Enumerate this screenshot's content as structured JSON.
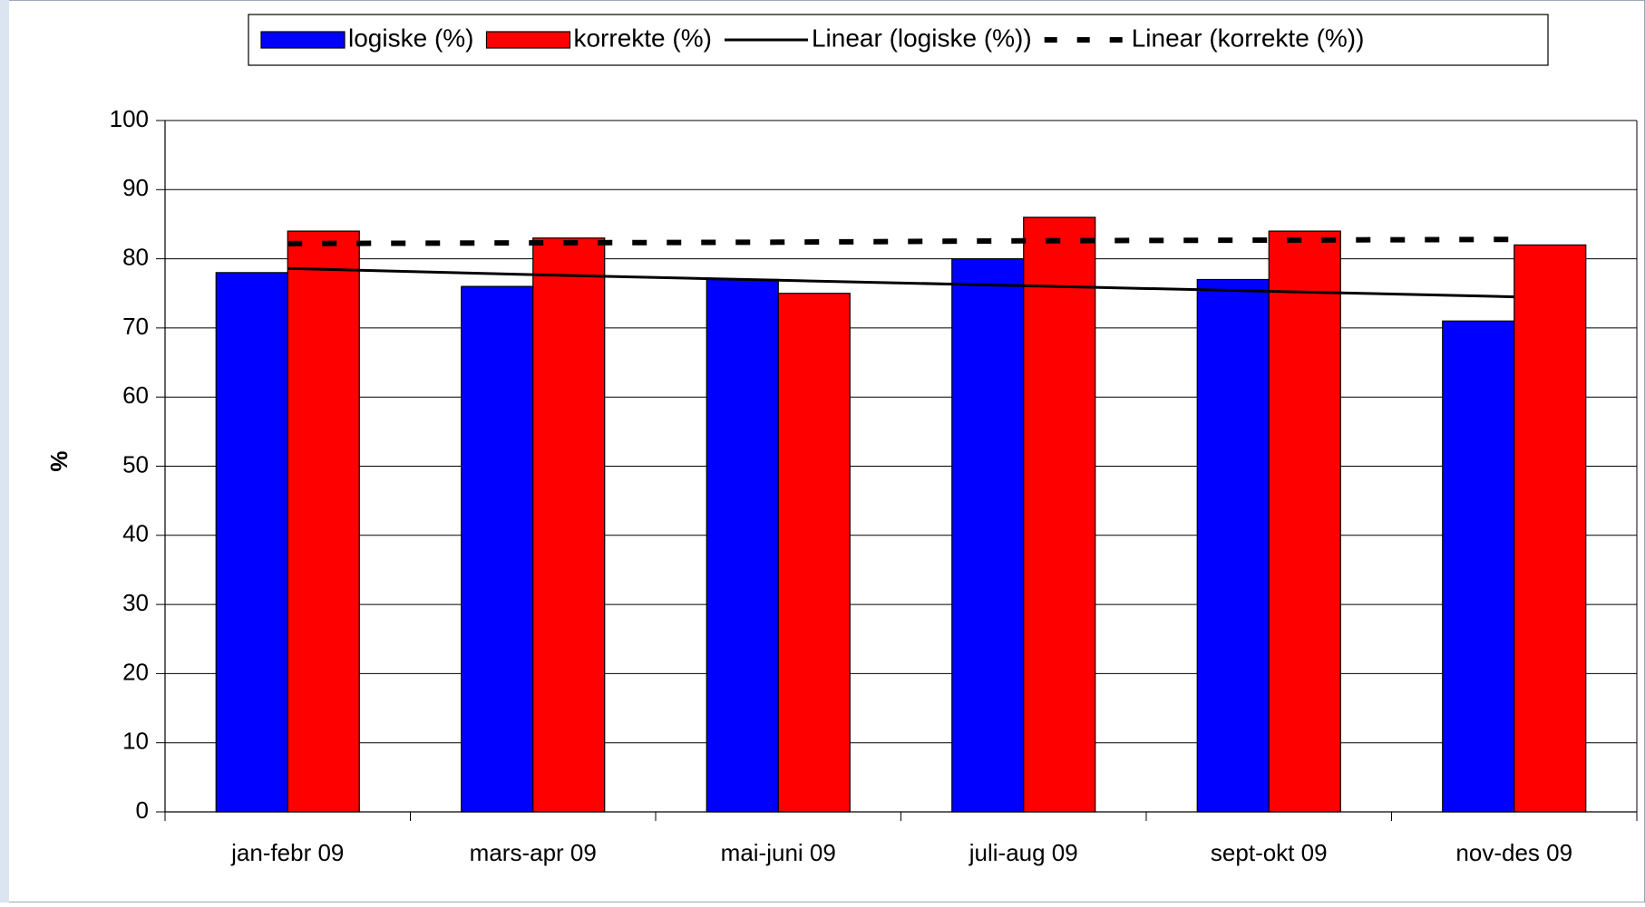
{
  "chart_data": {
    "type": "bar",
    "y_label": "%",
    "categories": [
      "jan-febr 09",
      "mars-apr 09",
      "mai-juni 09",
      "juli-aug 09",
      "sept-okt 09",
      "nov-des 09"
    ],
    "series": [
      {
        "name": "logiske (%)",
        "type": "bar",
        "color": "#0000ff",
        "values": [
          78,
          76,
          77,
          80,
          77,
          71
        ]
      },
      {
        "name": "korrekte (%)",
        "type": "bar",
        "color": "#ff0000",
        "values": [
          84,
          83,
          75,
          86,
          84,
          82
        ]
      },
      {
        "name": "Linear (logiske (%))",
        "type": "line",
        "color": "#000000",
        "dashed": false,
        "values": [
          78.6,
          77.7,
          76.9,
          76.1,
          75.3,
          74.5
        ]
      },
      {
        "name": "Linear (korrekte (%))",
        "type": "line",
        "color": "#000000",
        "dashed": true,
        "values": [
          82.2,
          82.3,
          82.4,
          82.6,
          82.7,
          82.8
        ]
      }
    ],
    "ylim": [
      0,
      100
    ],
    "yticks": [
      0,
      10,
      20,
      30,
      40,
      50,
      60,
      70,
      80,
      90,
      100
    ],
    "grid": true,
    "legend": "top"
  }
}
